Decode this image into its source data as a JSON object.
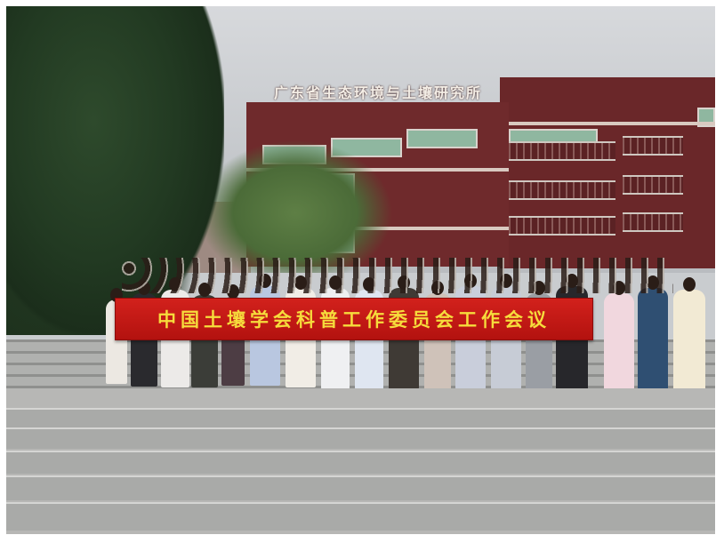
{
  "image": {
    "scene": "group photo",
    "rooftop_sign": "广东省生态环境与土壤研究所",
    "banner": "中国土壤学会科普工作委员会工作会议",
    "colors": {
      "banner_red": "#c0180f",
      "banner_text": "#f6dc3c",
      "building": "#6f2a2c",
      "sky": "#d2d4d7",
      "steps": "#a9aaa8",
      "foliage": "#223a22"
    }
  }
}
